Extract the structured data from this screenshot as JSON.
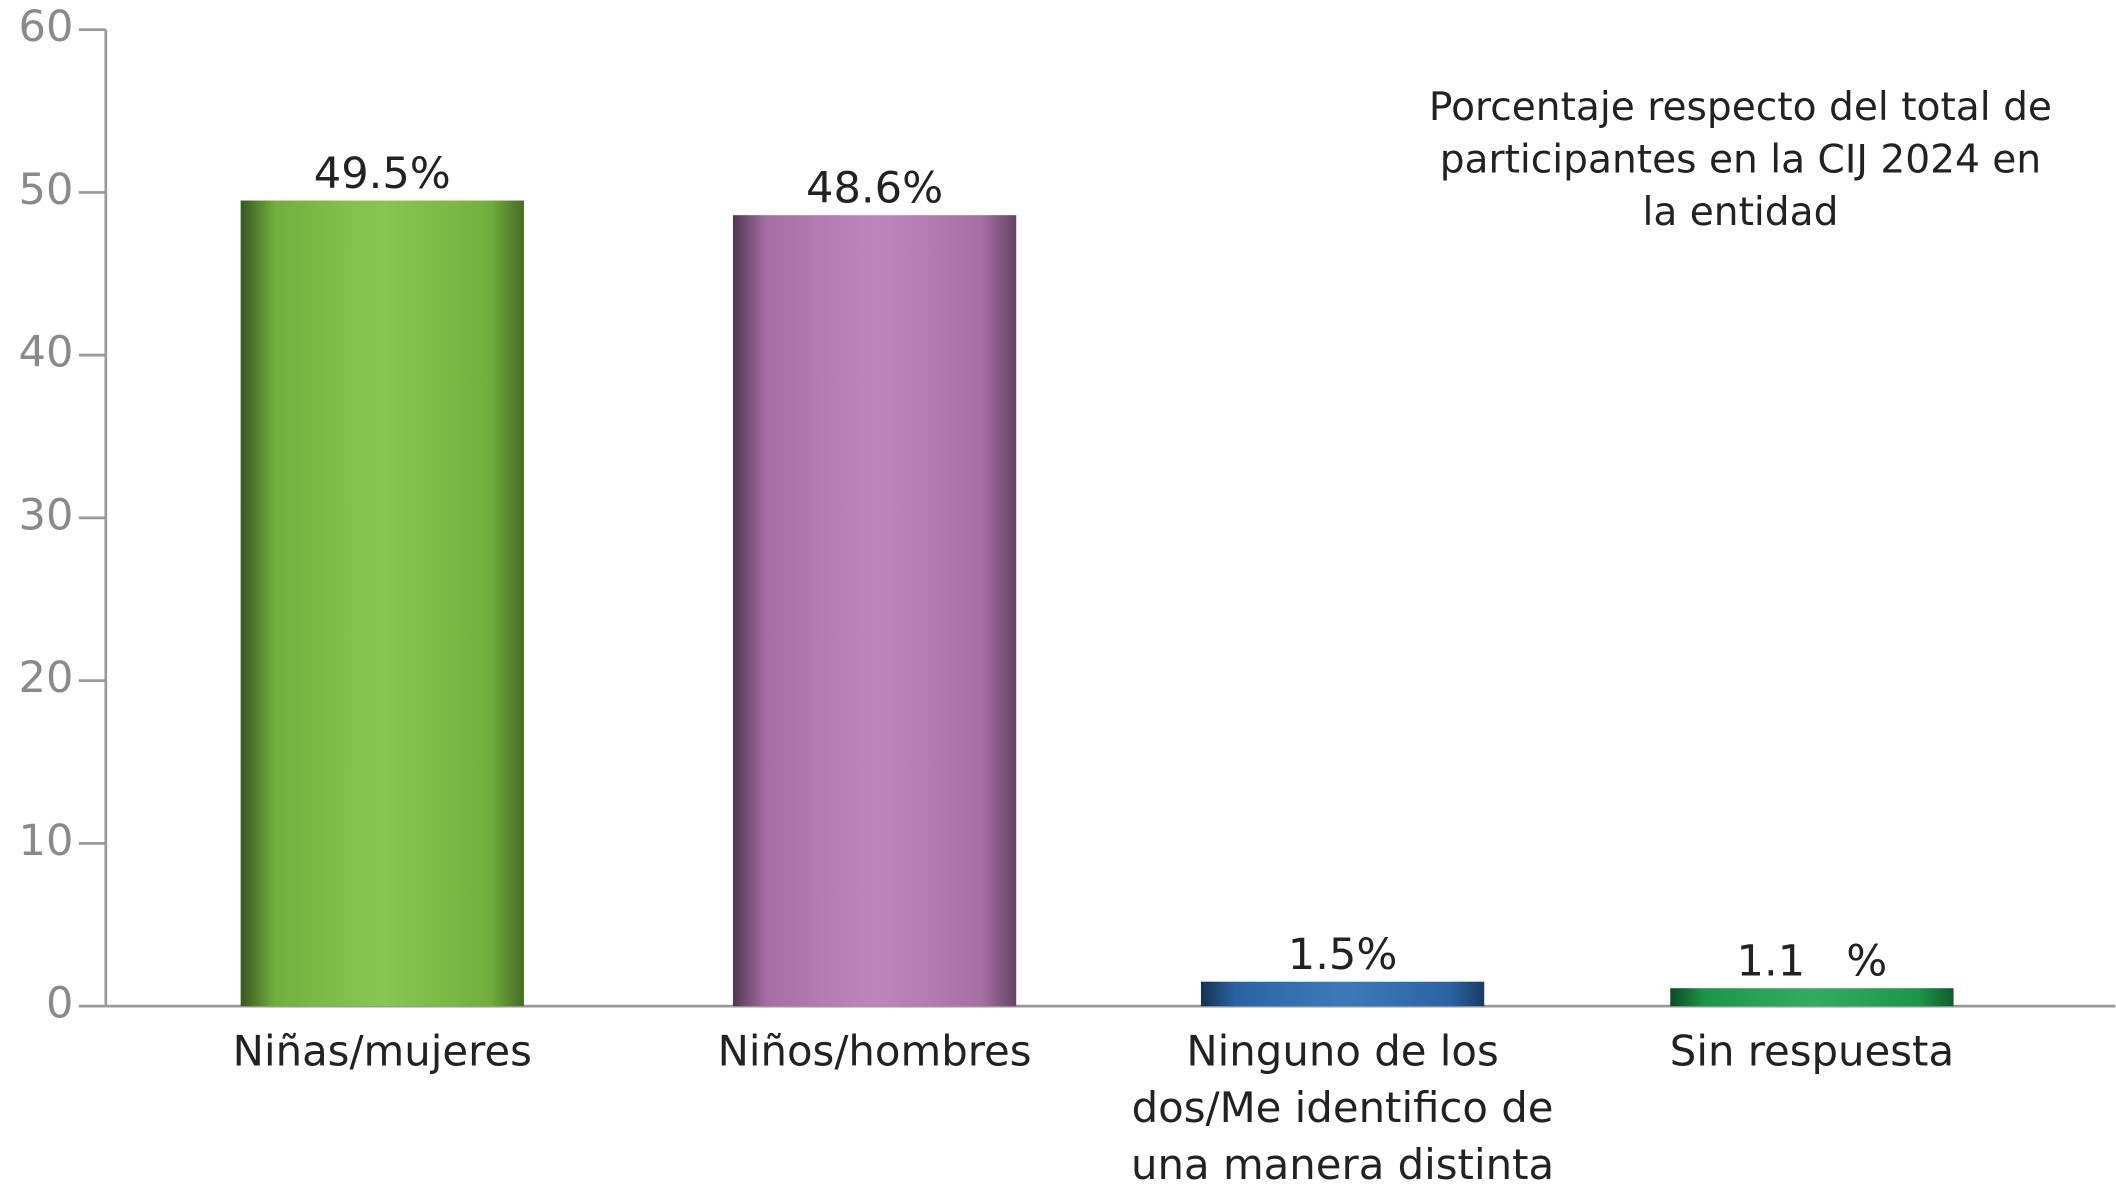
{
  "chart_data": {
    "type": "bar",
    "annotation": "Porcentaje respecto del total de participantes en la CIJ 2024 en la entidad",
    "categories": [
      "Niñas/mujeres",
      "Niños/hombres",
      "Ninguno de los dos/Me identifico de una manera distinta",
      "Sin respuesta"
    ],
    "values": [
      49.5,
      48.6,
      1.5,
      1.1
    ],
    "value_labels": [
      "49.5%",
      "48.6%",
      "1.5%",
      "1.1   %"
    ],
    "colors": [
      "#7dc242",
      "#b77bb6",
      "#2e6db4",
      "#1fa550"
    ],
    "ylim": [
      0,
      60
    ],
    "yticks": [
      0,
      10,
      20,
      30,
      40,
      50,
      60
    ],
    "grid": false
  }
}
